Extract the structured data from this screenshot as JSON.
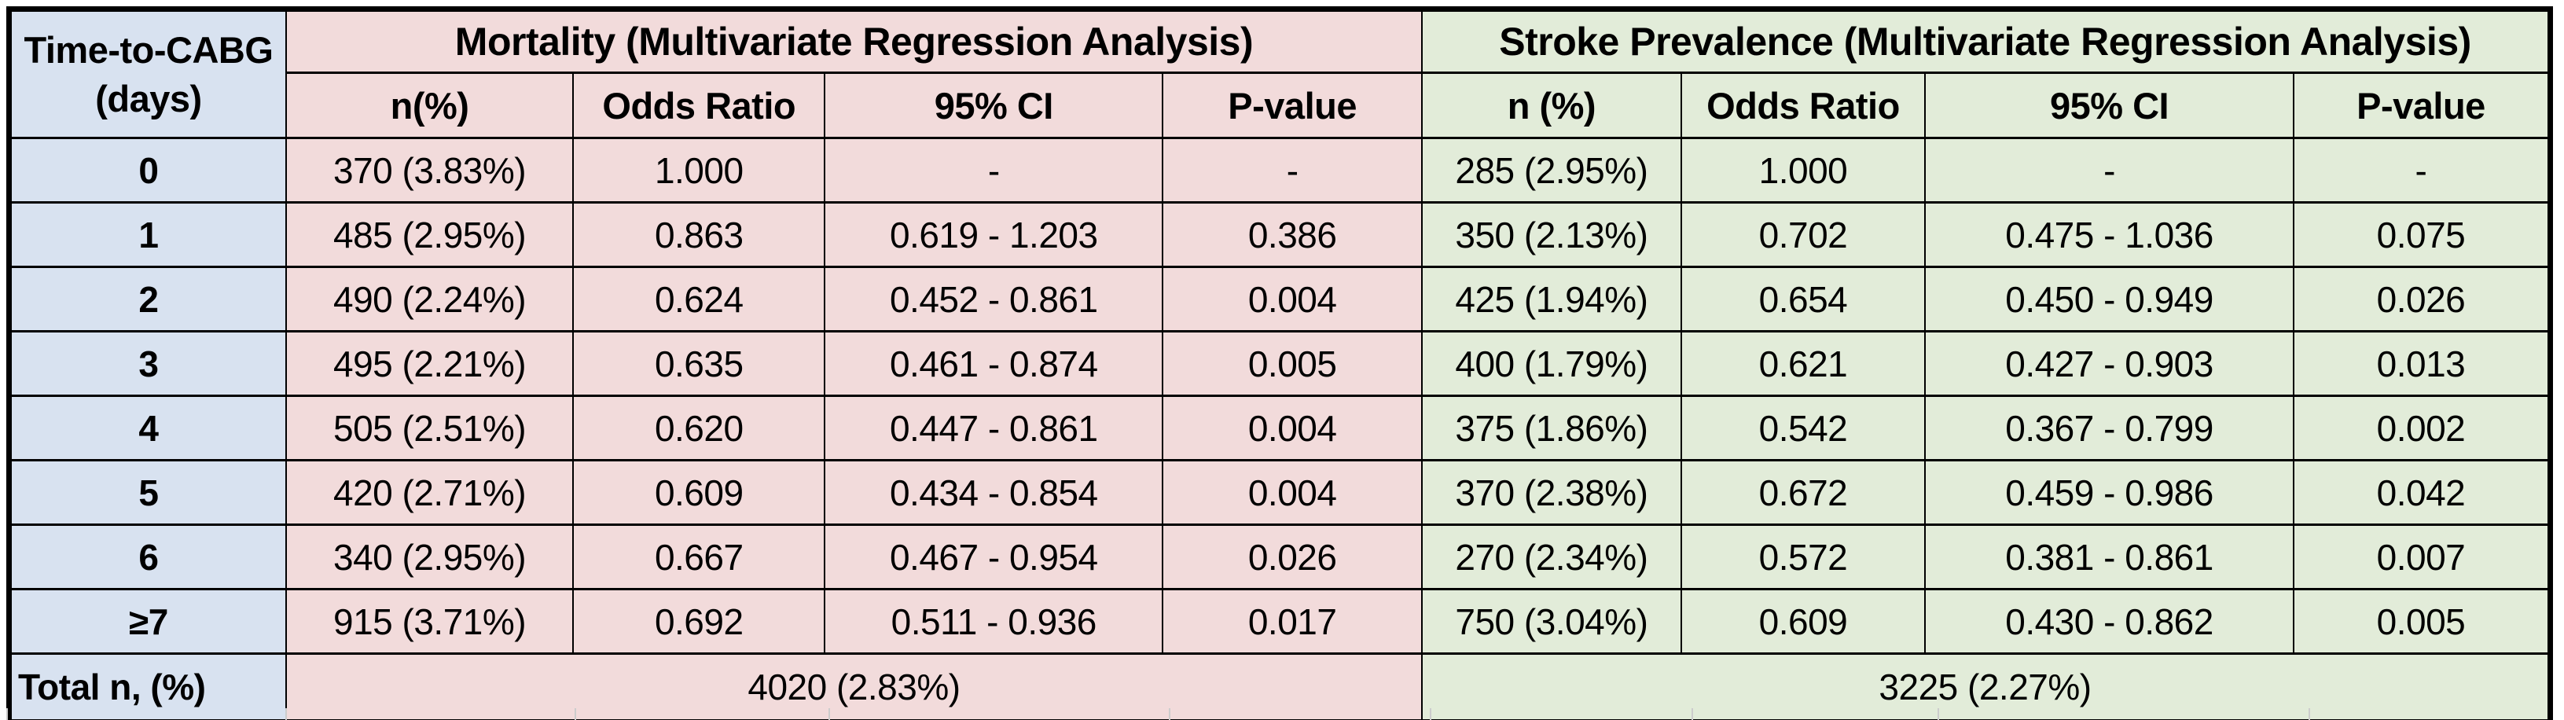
{
  "title_column": {
    "line1": "Time-to-CABG",
    "line2": "(days)",
    "total_label": "Total n, (%)"
  },
  "sections": [
    {
      "name": "mortality",
      "title": "Mortality (Multivariate Regression Analysis)",
      "columns": [
        "n(%)",
        "Odds Ratio",
        "95% CI",
        "P-value"
      ],
      "total": "4020 (2.83%)"
    },
    {
      "name": "stroke",
      "title": "Stroke Prevalence (Multivariate Regression Analysis)",
      "columns": [
        "n (%)",
        "Odds Ratio",
        "95% CI",
        "P-value"
      ],
      "total": "3225 (2.27%)"
    }
  ],
  "rows": [
    {
      "day": "0",
      "mortality": [
        "370 (3.83%)",
        "1.000",
        "-",
        "-"
      ],
      "stroke": [
        "285 (2.95%)",
        "1.000",
        "-",
        "-"
      ]
    },
    {
      "day": "1",
      "mortality": [
        "485 (2.95%)",
        "0.863",
        "0.619 - 1.203",
        "0.386"
      ],
      "stroke": [
        "350 (2.13%)",
        "0.702",
        "0.475 - 1.036",
        "0.075"
      ]
    },
    {
      "day": "2",
      "mortality": [
        "490 (2.24%)",
        "0.624",
        "0.452 - 0.861",
        "0.004"
      ],
      "stroke": [
        "425 (1.94%)",
        "0.654",
        "0.450 - 0.949",
        "0.026"
      ]
    },
    {
      "day": "3",
      "mortality": [
        "495 (2.21%)",
        "0.635",
        "0.461 - 0.874",
        "0.005"
      ],
      "stroke": [
        "400 (1.79%)",
        "0.621",
        "0.427 - 0.903",
        "0.013"
      ]
    },
    {
      "day": "4",
      "mortality": [
        "505 (2.51%)",
        "0.620",
        "0.447 - 0.861",
        "0.004"
      ],
      "stroke": [
        "375 (1.86%)",
        "0.542",
        "0.367 - 0.799",
        "0.002"
      ]
    },
    {
      "day": "5",
      "mortality": [
        "420 (2.71%)",
        "0.609",
        "0.434 - 0.854",
        "0.004"
      ],
      "stroke": [
        "370 (2.38%)",
        "0.672",
        "0.459 - 0.986",
        "0.042"
      ]
    },
    {
      "day": "6",
      "mortality": [
        "340 (2.95%)",
        "0.667",
        "0.467 - 0.954",
        "0.026"
      ],
      "stroke": [
        "270 (2.34%)",
        "0.572",
        "0.381 - 0.861",
        "0.007"
      ]
    },
    {
      "day": "≥7",
      "mortality": [
        "915 (3.71%)",
        "0.692",
        "0.511 - 0.936",
        "0.017"
      ],
      "stroke": [
        "750 (3.04%)",
        "0.609",
        "0.430 - 0.862",
        "0.005"
      ]
    }
  ],
  "colors": {
    "day_bg": "#d8e2f0",
    "mortality_bg": "#f2dbdb",
    "stroke_bg": "#e2ecd9",
    "border": "#000000",
    "grid_stub": "#cccccc"
  },
  "chart_data": {
    "type": "table",
    "title": "Time-to-CABG outcomes: Mortality and Stroke Prevalence (Multivariate Regression Analysis)",
    "row_key_header": "Time-to-CABG (days)",
    "group_headers": [
      "Mortality (Multivariate Regression Analysis)",
      "Stroke Prevalence (Multivariate Regression Analysis)"
    ],
    "column_headers": [
      "Time-to-CABG (days)",
      "Mortality n(%)",
      "Mortality Odds Ratio",
      "Mortality 95% CI",
      "Mortality P-value",
      "Stroke n (%)",
      "Stroke Odds Ratio",
      "Stroke 95% CI",
      "Stroke P-value"
    ],
    "rows": [
      [
        "0",
        "370 (3.83%)",
        "1.000",
        "-",
        "-",
        "285 (2.95%)",
        "1.000",
        "-",
        "-"
      ],
      [
        "1",
        "485 (2.95%)",
        "0.863",
        "0.619 - 1.203",
        "0.386",
        "350 (2.13%)",
        "0.702",
        "0.475 - 1.036",
        "0.075"
      ],
      [
        "2",
        "490 (2.24%)",
        "0.624",
        "0.452 - 0.861",
        "0.004",
        "425 (1.94%)",
        "0.654",
        "0.450 - 0.949",
        "0.026"
      ],
      [
        "3",
        "495 (2.21%)",
        "0.635",
        "0.461 - 0.874",
        "0.005",
        "400 (1.79%)",
        "0.621",
        "0.427 - 0.903",
        "0.013"
      ],
      [
        "4",
        "505 (2.51%)",
        "0.620",
        "0.447 - 0.861",
        "0.004",
        "375 (1.86%)",
        "0.542",
        "0.367 - 0.799",
        "0.002"
      ],
      [
        "5",
        "420 (2.71%)",
        "0.609",
        "0.434 - 0.854",
        "0.004",
        "370 (2.38%)",
        "0.672",
        "0.459 - 0.986",
        "0.042"
      ],
      [
        "6",
        "340 (2.95%)",
        "0.667",
        "0.467 - 0.954",
        "0.026",
        "270 (2.34%)",
        "0.572",
        "0.381 - 0.861",
        "0.007"
      ],
      [
        "≥7",
        "915 (3.71%)",
        "0.692",
        "0.511 - 0.936",
        "0.017",
        "750 (3.04%)",
        "0.609",
        "0.430 - 0.862",
        "0.005"
      ]
    ],
    "totals_row": [
      "Total n, (%)",
      "4020 (2.83%)",
      "3225 (2.27%)"
    ]
  }
}
